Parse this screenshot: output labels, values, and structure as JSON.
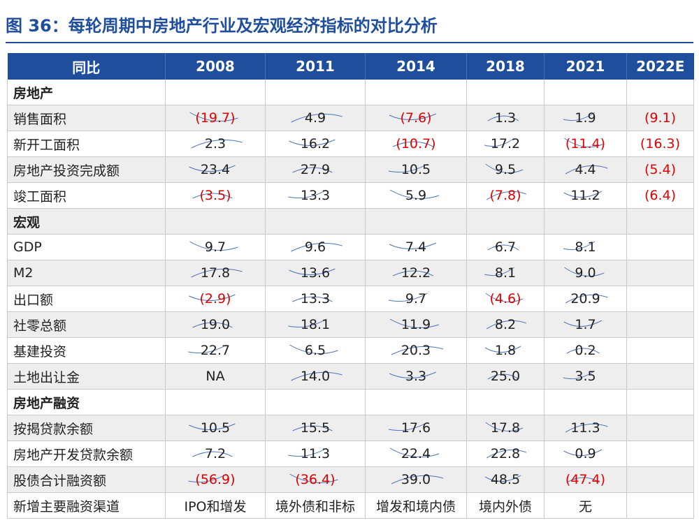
{
  "title": "图 36：每轮周期中房地产行业及宏观经济指标的对比分析",
  "header": {
    "first": "同比",
    "years": [
      "2008",
      "2011",
      "2014",
      "2018",
      "2021",
      "2022E"
    ]
  },
  "colors": {
    "accent": "#1f4e9c",
    "negative": "#e00000",
    "stripe": "#eeeeee",
    "line": "#4a73b8"
  },
  "rows": [
    {
      "label": "房地产",
      "section": true,
      "cells": [
        "",
        "",
        "",
        "",
        "",
        ""
      ]
    },
    {
      "label": "销售面积",
      "section": false,
      "cells": [
        "(19.7)",
        "4.9",
        "(7.6)",
        "1.3",
        "1.9",
        "(9.1)"
      ]
    },
    {
      "label": "新开工面积",
      "section": false,
      "cells": [
        "2.3",
        "16.2",
        "(10.7)",
        "17.2",
        "(11.4)",
        "(16.3)"
      ]
    },
    {
      "label": "房地产投资完成额",
      "section": false,
      "cells": [
        "23.4",
        "27.9",
        "10.5",
        "9.5",
        "4.4",
        "(5.4)"
      ]
    },
    {
      "label": "竣工面积",
      "section": false,
      "cells": [
        "(3.5)",
        "13.3",
        "5.9",
        "(7.8)",
        "11.2",
        "(6.4)"
      ]
    },
    {
      "label": "宏观",
      "section": true,
      "cells": [
        "",
        "",
        "",
        "",
        "",
        ""
      ]
    },
    {
      "label": "GDP",
      "section": false,
      "cells": [
        "9.7",
        "9.6",
        "7.4",
        "6.7",
        "8.1",
        ""
      ]
    },
    {
      "label": "M2",
      "section": false,
      "cells": [
        "17.8",
        "13.6",
        "12.2",
        "8.1",
        "9.0",
        ""
      ]
    },
    {
      "label": "出口额",
      "section": false,
      "cells": [
        "(2.9)",
        "13.3",
        "9.7",
        "(4.6)",
        "20.9",
        ""
      ]
    },
    {
      "label": "社零总额",
      "section": false,
      "cells": [
        "19.0",
        "18.1",
        "11.9",
        "8.2",
        "1.7",
        ""
      ]
    },
    {
      "label": "基建投资",
      "section": false,
      "cells": [
        "22.7",
        "6.5",
        "20.3",
        "1.8",
        "0.2",
        ""
      ]
    },
    {
      "label": "土地出让金",
      "section": false,
      "cells": [
        "NA",
        "14.0",
        "3.3",
        "25.0",
        "3.5",
        ""
      ]
    },
    {
      "label": "房地产融资",
      "section": true,
      "cells": [
        "",
        "",
        "",
        "",
        "",
        ""
      ]
    },
    {
      "label": "按揭贷款余额",
      "section": false,
      "cells": [
        "10.5",
        "15.5",
        "17.6",
        "17.8",
        "11.3",
        ""
      ]
    },
    {
      "label": "房地产开发贷款余额",
      "section": false,
      "cells": [
        "7.2",
        "11.3",
        "22.4",
        "22.8",
        "0.9",
        ""
      ]
    },
    {
      "label": "股债合计融资额",
      "section": false,
      "cells": [
        "(56.9)",
        "(36.4)",
        "39.0",
        "48.5",
        "(47.4)",
        ""
      ]
    },
    {
      "label": "新增主要融资渠道",
      "section": false,
      "cells": [
        "IPO和增发",
        "境外债和非标",
        "增发和境内债",
        "境内外债",
        "无",
        ""
      ]
    }
  ]
}
